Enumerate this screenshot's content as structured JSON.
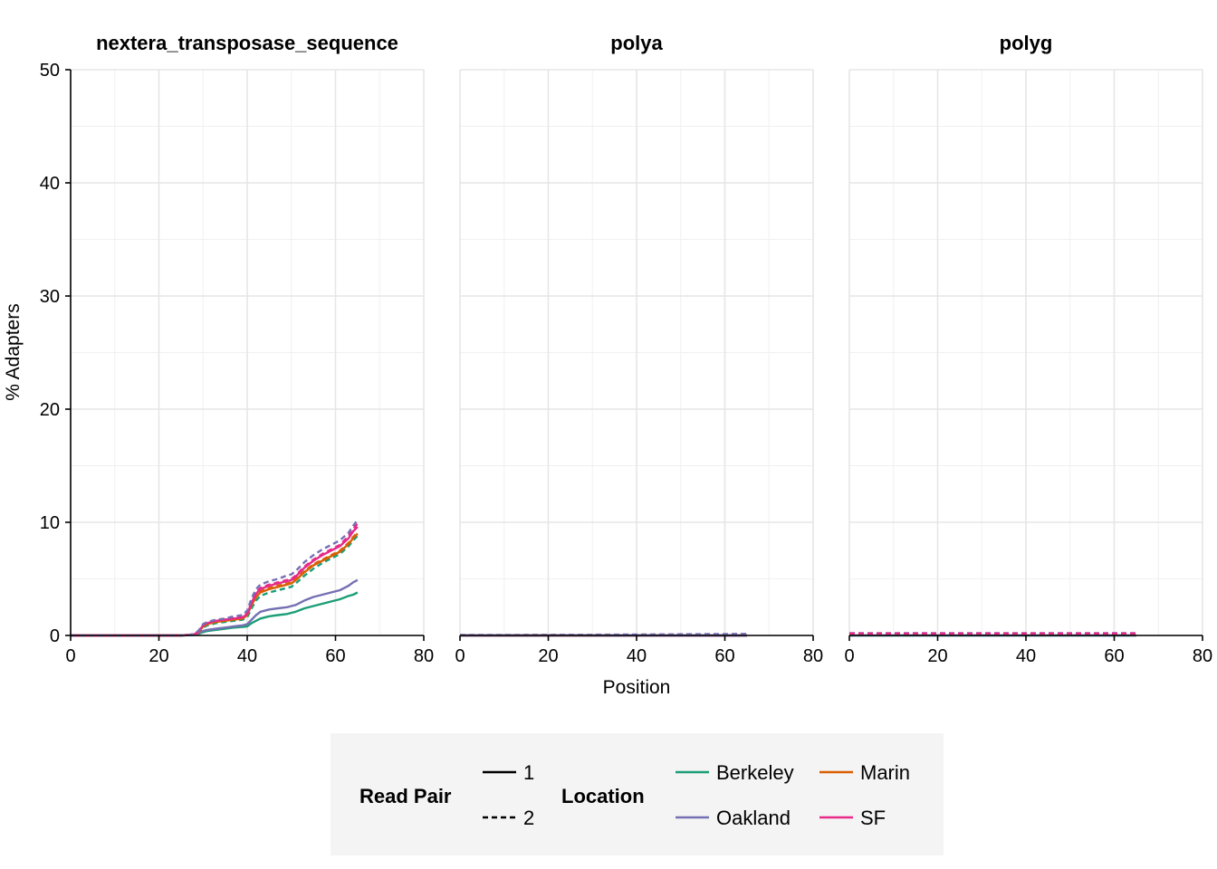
{
  "chart_data": {
    "type": "line",
    "xlabel": "Position",
    "ylabel": "% Adapters",
    "xlim": [
      0,
      80
    ],
    "ylim": [
      0,
      50
    ],
    "x_ticks": [
      0,
      20,
      40,
      60,
      80
    ],
    "y_ticks": [
      0,
      10,
      20,
      30,
      40,
      50
    ],
    "grid": true,
    "legend_position": "bottom",
    "colors": {
      "Berkeley": "#1b9e77",
      "Marin": "#d95f02",
      "Oakland": "#7570b3",
      "SF": "#e7298a"
    },
    "linetypes": {
      "1": "solid",
      "2": "dashed"
    },
    "legend": {
      "read_pair": {
        "title": "Read Pair",
        "items": [
          "1",
          "2"
        ]
      },
      "location": {
        "title": "Location",
        "items": [
          "Berkeley",
          "Marin",
          "Oakland",
          "SF"
        ]
      }
    },
    "x": [
      0,
      5,
      10,
      15,
      20,
      25,
      28,
      29,
      30,
      31,
      33,
      35,
      37,
      39,
      40,
      41,
      42,
      43,
      45,
      47,
      49,
      50,
      51,
      53,
      55,
      57,
      59,
      61,
      63,
      64,
      65
    ],
    "panels": [
      {
        "title": "nextera_transposase_sequence",
        "series": [
          {
            "location": "Berkeley",
            "read_pair": "1",
            "values": [
              0,
              0,
              0,
              0,
              0,
              0,
              0.05,
              0.15,
              0.3,
              0.4,
              0.5,
              0.6,
              0.7,
              0.75,
              0.8,
              1.1,
              1.3,
              1.5,
              1.7,
              1.8,
              1.9,
              2.0,
              2.1,
              2.4,
              2.6,
              2.8,
              3.0,
              3.2,
              3.5,
              3.6,
              3.8
            ]
          },
          {
            "location": "Oakland",
            "read_pair": "1",
            "values": [
              0,
              0,
              0,
              0,
              0,
              0,
              0.05,
              0.2,
              0.4,
              0.5,
              0.6,
              0.7,
              0.8,
              0.9,
              1.0,
              1.4,
              1.8,
              2.1,
              2.3,
              2.4,
              2.5,
              2.6,
              2.7,
              3.1,
              3.4,
              3.6,
              3.8,
              4.0,
              4.4,
              4.7,
              4.9
            ]
          },
          {
            "location": "Berkeley",
            "read_pair": "2",
            "values": [
              0,
              0,
              0,
              0,
              0,
              0,
              0.1,
              0.3,
              0.7,
              0.9,
              1.1,
              1.2,
              1.3,
              1.4,
              1.6,
              2.4,
              3.1,
              3.5,
              3.8,
              4.0,
              4.2,
              4.3,
              4.6,
              5.3,
              5.9,
              6.4,
              6.8,
              7.2,
              7.9,
              8.4,
              8.8
            ]
          },
          {
            "location": "Marin",
            "read_pair": "1",
            "values": [
              0,
              0,
              0,
              0,
              0,
              0,
              0.1,
              0.3,
              0.8,
              1.0,
              1.2,
              1.3,
              1.4,
              1.5,
              1.8,
              2.7,
              3.4,
              3.8,
              4.1,
              4.3,
              4.5,
              4.6,
              4.9,
              5.6,
              6.2,
              6.6,
              7.0,
              7.4,
              8.1,
              8.6,
              9.0
            ]
          },
          {
            "location": "Marin",
            "read_pair": "2",
            "values": [
              0,
              0,
              0,
              0,
              0,
              0,
              0.1,
              0.35,
              0.85,
              1.05,
              1.25,
              1.35,
              1.45,
              1.55,
              1.85,
              2.8,
              3.5,
              3.9,
              4.2,
              4.4,
              4.6,
              4.7,
              5.0,
              5.7,
              6.3,
              6.7,
              7.1,
              7.5,
              8.2,
              8.7,
              9.1
            ]
          },
          {
            "location": "SF",
            "read_pair": "1",
            "values": [
              0,
              0,
              0,
              0,
              0,
              0,
              0.1,
              0.35,
              0.9,
              1.1,
              1.3,
              1.4,
              1.5,
              1.6,
              1.9,
              2.9,
              3.7,
              4.1,
              4.4,
              4.6,
              4.8,
              4.9,
              5.2,
              6.0,
              6.6,
              7.1,
              7.5,
              7.9,
              8.6,
              9.2,
              9.6
            ]
          },
          {
            "location": "SF",
            "read_pair": "2",
            "values": [
              0,
              0,
              0,
              0,
              0,
              0,
              0.1,
              0.4,
              0.95,
              1.15,
              1.35,
              1.45,
              1.55,
              1.65,
              2.0,
              3.0,
              3.8,
              4.2,
              4.5,
              4.7,
              4.9,
              5.0,
              5.3,
              6.1,
              6.7,
              7.2,
              7.6,
              8.0,
              8.8,
              9.4,
              9.9
            ]
          },
          {
            "location": "Oakland",
            "read_pair": "2",
            "values": [
              0,
              0,
              0,
              0,
              0,
              0,
              0.1,
              0.45,
              1.0,
              1.2,
              1.4,
              1.5,
              1.7,
              1.8,
              2.2,
              3.3,
              4.1,
              4.5,
              4.8,
              5.0,
              5.3,
              5.4,
              5.7,
              6.5,
              7.1,
              7.6,
              8.0,
              8.4,
              9.1,
              9.7,
              10.2
            ]
          }
        ]
      },
      {
        "title": "polya",
        "series": [
          {
            "location": "Berkeley",
            "read_pair": "1",
            "values": [
              0,
              0,
              0,
              0,
              0,
              0,
              0,
              0,
              0,
              0,
              0,
              0,
              0,
              0,
              0,
              0,
              0,
              0,
              0,
              0,
              0,
              0,
              0,
              0,
              0,
              0,
              0,
              0,
              0,
              0,
              0
            ]
          },
          {
            "location": "Marin",
            "read_pair": "1",
            "values": [
              0,
              0,
              0,
              0,
              0,
              0,
              0,
              0,
              0,
              0,
              0,
              0,
              0,
              0,
              0,
              0,
              0,
              0,
              0,
              0,
              0,
              0,
              0,
              0,
              0,
              0,
              0,
              0,
              0,
              0,
              0
            ]
          },
          {
            "location": "SF",
            "read_pair": "1",
            "values": [
              0,
              0,
              0,
              0,
              0,
              0,
              0,
              0,
              0,
              0,
              0,
              0,
              0,
              0,
              0,
              0,
              0,
              0,
              0,
              0,
              0,
              0,
              0,
              0,
              0,
              0,
              0,
              0,
              0,
              0,
              0
            ]
          },
          {
            "location": "Oakland",
            "read_pair": "1",
            "values": [
              0,
              0,
              0,
              0,
              0,
              0,
              0,
              0,
              0,
              0,
              0,
              0,
              0,
              0,
              0,
              0,
              0,
              0,
              0,
              0,
              0,
              0,
              0,
              0,
              0,
              0,
              0,
              0,
              0,
              0,
              0
            ]
          },
          {
            "location": "Berkeley",
            "read_pair": "2",
            "values": [
              0.02,
              0.02,
              0.02,
              0.03,
              0.03,
              0.03,
              0.03,
              0.03,
              0.04,
              0.04,
              0.04,
              0.04,
              0.04,
              0.05,
              0.05,
              0.05,
              0.05,
              0.05,
              0.06,
              0.06,
              0.06,
              0.06,
              0.06,
              0.07,
              0.07,
              0.07,
              0.08,
              0.08,
              0.08,
              0.08,
              0.08
            ]
          },
          {
            "location": "Marin",
            "read_pair": "2",
            "values": [
              0.03,
              0.03,
              0.03,
              0.04,
              0.04,
              0.04,
              0.04,
              0.05,
              0.05,
              0.05,
              0.05,
              0.06,
              0.06,
              0.06,
              0.06,
              0.07,
              0.07,
              0.07,
              0.07,
              0.08,
              0.08,
              0.08,
              0.08,
              0.09,
              0.09,
              0.1,
              0.1,
              0.1,
              0.11,
              0.11,
              0.11
            ]
          },
          {
            "location": "Oakland",
            "read_pair": "2",
            "values": [
              0.04,
              0.04,
              0.05,
              0.05,
              0.05,
              0.06,
              0.06,
              0.06,
              0.06,
              0.07,
              0.07,
              0.07,
              0.08,
              0.08,
              0.08,
              0.09,
              0.09,
              0.09,
              0.1,
              0.1,
              0.1,
              0.11,
              0.11,
              0.11,
              0.12,
              0.12,
              0.13,
              0.13,
              0.14,
              0.14,
              0.14
            ]
          }
        ]
      },
      {
        "title": "polyg",
        "series": [
          {
            "location": "Berkeley",
            "read_pair": "1",
            "values": [
              0,
              0,
              0,
              0,
              0,
              0,
              0,
              0,
              0,
              0,
              0,
              0,
              0,
              0,
              0,
              0,
              0,
              0,
              0,
              0,
              0,
              0,
              0,
              0,
              0,
              0,
              0,
              0,
              0,
              0,
              0
            ]
          },
          {
            "location": "Oakland",
            "read_pair": "1",
            "values": [
              0.01,
              0.01,
              0.01,
              0.01,
              0.01,
              0.01,
              0.01,
              0.01,
              0.01,
              0.01,
              0.01,
              0.01,
              0.01,
              0.01,
              0.01,
              0.01,
              0.01,
              0.01,
              0.01,
              0.01,
              0.01,
              0.01,
              0.01,
              0.01,
              0.01,
              0.01,
              0.01,
              0.01,
              0.01,
              0.01,
              0.01
            ]
          },
          {
            "location": "Berkeley",
            "read_pair": "2",
            "values": [
              0.12,
              0.12,
              0.12,
              0.12,
              0.12,
              0.12,
              0.12,
              0.12,
              0.12,
              0.12,
              0.12,
              0.12,
              0.12,
              0.12,
              0.12,
              0.12,
              0.12,
              0.12,
              0.12,
              0.12,
              0.12,
              0.12,
              0.12,
              0.12,
              0.12,
              0.12,
              0.12,
              0.12,
              0.12,
              0.12,
              0.12
            ]
          },
          {
            "location": "Marin",
            "read_pair": "2",
            "values": [
              0.15,
              0.15,
              0.15,
              0.15,
              0.15,
              0.15,
              0.15,
              0.15,
              0.15,
              0.15,
              0.15,
              0.15,
              0.15,
              0.15,
              0.15,
              0.15,
              0.15,
              0.15,
              0.15,
              0.15,
              0.15,
              0.15,
              0.15,
              0.15,
              0.15,
              0.15,
              0.15,
              0.15,
              0.15,
              0.15,
              0.15
            ]
          },
          {
            "location": "Oakland",
            "read_pair": "2",
            "values": [
              0.2,
              0.2,
              0.2,
              0.2,
              0.2,
              0.2,
              0.2,
              0.2,
              0.2,
              0.2,
              0.2,
              0.2,
              0.2,
              0.2,
              0.2,
              0.2,
              0.2,
              0.2,
              0.2,
              0.2,
              0.2,
              0.2,
              0.2,
              0.2,
              0.2,
              0.2,
              0.2,
              0.2,
              0.2,
              0.2,
              0.2
            ]
          },
          {
            "location": "SF",
            "read_pair": "2",
            "values": [
              0.18,
              0.18,
              0.18,
              0.18,
              0.18,
              0.18,
              0.18,
              0.18,
              0.18,
              0.18,
              0.18,
              0.18,
              0.18,
              0.18,
              0.18,
              0.18,
              0.18,
              0.18,
              0.18,
              0.18,
              0.18,
              0.18,
              0.18,
              0.18,
              0.18,
              0.18,
              0.18,
              0.18,
              0.18,
              0.18,
              0.18
            ]
          }
        ]
      }
    ]
  }
}
